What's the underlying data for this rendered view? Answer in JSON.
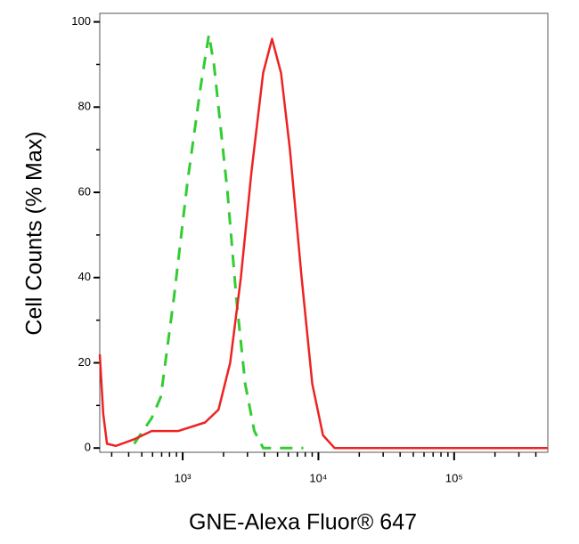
{
  "chart_data": {
    "type": "line",
    "xlabel": "GNE-Alexa Fluor® 647",
    "ylabel": "Cell Counts (% Max)",
    "xscale": "log",
    "xlim": [
      245,
      490000
    ],
    "ylim": [
      -1,
      102
    ],
    "xticks": [
      {
        "value": 1000,
        "label": "10³"
      },
      {
        "value": 10000,
        "label": "10⁴"
      },
      {
        "value": 100000,
        "label": "10⁵"
      }
    ],
    "xminorticks": [
      300,
      400,
      500,
      600,
      700,
      800,
      900,
      2000,
      3000,
      4000,
      5000,
      6000,
      7000,
      8000,
      9000,
      20000,
      30000,
      40000,
      50000,
      60000,
      70000,
      80000,
      90000,
      200000,
      300000,
      400000
    ],
    "yticks": [
      0,
      20,
      40,
      60,
      80,
      100
    ],
    "yminorticks": [
      10,
      30,
      50,
      70,
      90
    ],
    "series": [
      {
        "color": "#33cc33",
        "dashed": true,
        "x": [
          440,
          590,
          690,
          860,
          1080,
          1360,
          1560,
          1700,
          2140,
          2490,
          2890,
          3370,
          3920,
          7740
        ],
        "values": [
          1,
          7,
          12,
          35,
          62,
          85,
          97,
          90,
          60,
          35,
          15,
          4,
          0,
          0
        ]
      },
      {
        "color": "#ee2222",
        "dashed": false,
        "x": [
          245,
          260,
          277,
          322,
          436,
          590,
          929,
          1462,
          1837,
          2238,
          2682,
          3216,
          3917,
          4557,
          5305,
          6169,
          7516,
          9016,
          10814,
          13150,
          490000
        ],
        "values": [
          22,
          8,
          1,
          0.5,
          2,
          4,
          4,
          6,
          9,
          20,
          40,
          65,
          88,
          96,
          88,
          70,
          40,
          15,
          3,
          0,
          0
        ]
      }
    ]
  }
}
